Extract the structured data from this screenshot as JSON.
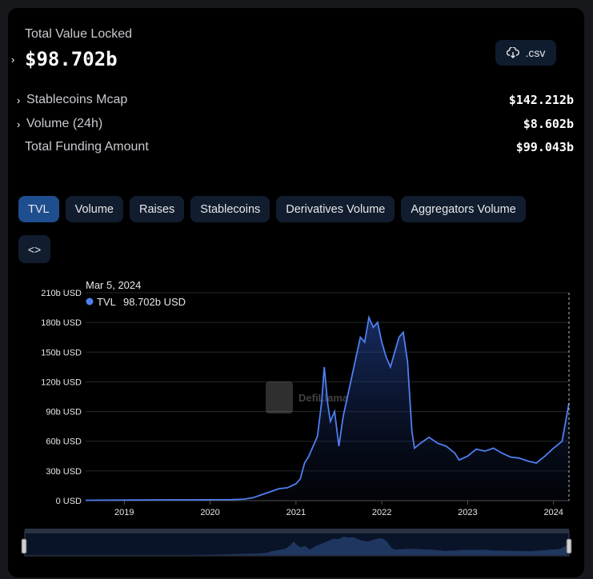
{
  "summary": {
    "tvl_label": "Total Value Locked",
    "tvl_value": "$98.702b",
    "csv_label": ".csv",
    "stats": [
      {
        "label": "Stablecoins Mcap",
        "value": "$142.212b",
        "expandable": true
      },
      {
        "label": "Volume (24h)",
        "value": "$8.602b",
        "expandable": true
      },
      {
        "label": "Total Funding Amount",
        "value": "$99.043b",
        "expandable": false
      }
    ]
  },
  "tabs": [
    "TVL",
    "Volume",
    "Raises",
    "Stablecoins",
    "Derivatives Volume",
    "Aggregators Volume"
  ],
  "embed_label": "<>",
  "tooltip": {
    "date": "Mar 5, 2024",
    "series": "TVL",
    "value": "98.702b USD"
  },
  "watermark": "DefiLlama",
  "colors": {
    "line": "#4f7ff0",
    "active_tab": "#1f4e8f",
    "tab": "#111d2e"
  },
  "chart_data": {
    "type": "area",
    "series": [
      {
        "name": "TVL",
        "unit": "b USD",
        "x": [
          2018.55,
          2018.8,
          2019.0,
          2019.25,
          2019.5,
          2019.75,
          2020.0,
          2020.25,
          2020.4,
          2020.5,
          2020.6,
          2020.7,
          2020.8,
          2020.9,
          2021.0,
          2021.05,
          2021.1,
          2021.15,
          2021.2,
          2021.25,
          2021.3,
          2021.33,
          2021.37,
          2021.4,
          2021.45,
          2021.5,
          2021.55,
          2021.6,
          2021.65,
          2021.7,
          2021.75,
          2021.8,
          2021.85,
          2021.9,
          2021.95,
          2022.0,
          2022.05,
          2022.1,
          2022.15,
          2022.2,
          2022.25,
          2022.3,
          2022.35,
          2022.38,
          2022.45,
          2022.55,
          2022.65,
          2022.75,
          2022.85,
          2022.9,
          2023.0,
          2023.1,
          2023.2,
          2023.3,
          2023.4,
          2023.5,
          2023.6,
          2023.7,
          2023.8,
          2023.9,
          2024.0,
          2024.1,
          2024.18
        ],
        "y": [
          0.3,
          0.5,
          0.6,
          0.7,
          0.8,
          0.8,
          0.9,
          1,
          1.5,
          3,
          6,
          9,
          12,
          13,
          17,
          22,
          38,
          45,
          55,
          65,
          100,
          135,
          98,
          80,
          90,
          55,
          85,
          105,
          125,
          145,
          165,
          160,
          185,
          175,
          180,
          160,
          145,
          135,
          150,
          165,
          170,
          140,
          70,
          53,
          58,
          64,
          58,
          55,
          48,
          41,
          45,
          52,
          50,
          53,
          48,
          44,
          43,
          40,
          38,
          45,
          53,
          60,
          98.702
        ]
      }
    ],
    "xticks": [
      "2019",
      "2020",
      "2021",
      "2022",
      "2023",
      "2024"
    ],
    "xtick_values": [
      2019,
      2020,
      2021,
      2022,
      2023,
      2024
    ],
    "yticks": [
      "0 USD",
      "30b USD",
      "60b USD",
      "90b USD",
      "120b USD",
      "150b USD",
      "180b USD",
      "210b USD"
    ],
    "ytick_values": [
      0,
      30,
      60,
      90,
      120,
      150,
      180,
      210
    ],
    "xlim": [
      2018.55,
      2024.18
    ],
    "ylim": [
      0,
      210
    ],
    "grid": true,
    "legend": "top-left"
  }
}
